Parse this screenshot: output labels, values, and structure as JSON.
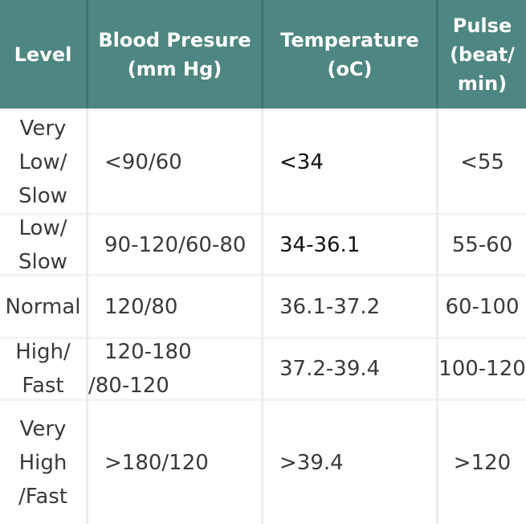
{
  "header": {
    "level": "Level",
    "blood_pressure": [
      "Blood Presure",
      "(mm Hg)"
    ],
    "temperature": [
      "Temperature",
      "(oC)"
    ],
    "pulse": [
      "Pulse",
      "(beat/",
      "min)"
    ]
  },
  "rows": [
    {
      "level": [
        "Very",
        "Low/",
        "Slow"
      ],
      "bp": [
        "<90/60"
      ],
      "temp": [
        "<34"
      ],
      "pulse": [
        "<55"
      ]
    },
    {
      "level": [
        "Low/",
        "Slow"
      ],
      "bp": [
        "90-120/60-80"
      ],
      "temp": [
        "34-36.1"
      ],
      "pulse": [
        "55-60"
      ]
    },
    {
      "level": [
        "Normal"
      ],
      "bp": [
        "120/80"
      ],
      "temp": [
        "36.1-37.2"
      ],
      "pulse": [
        "60-100"
      ]
    },
    {
      "level": [
        "High/",
        "Fast"
      ],
      "bp": [
        "120-180",
        "/80-120"
      ],
      "temp": [
        "37.2-39.4"
      ],
      "pulse": [
        "100-120"
      ]
    },
    {
      "level": [
        "Very",
        "High",
        "/Fast"
      ],
      "bp": [
        ">180/120"
      ],
      "temp": [
        ">39.4"
      ],
      "pulse": [
        ">120"
      ]
    }
  ],
  "colors": {
    "header_bg": "#4e8681",
    "header_text": "#ffffff",
    "body_bg": "#ffffff",
    "grid": "#ececec"
  }
}
